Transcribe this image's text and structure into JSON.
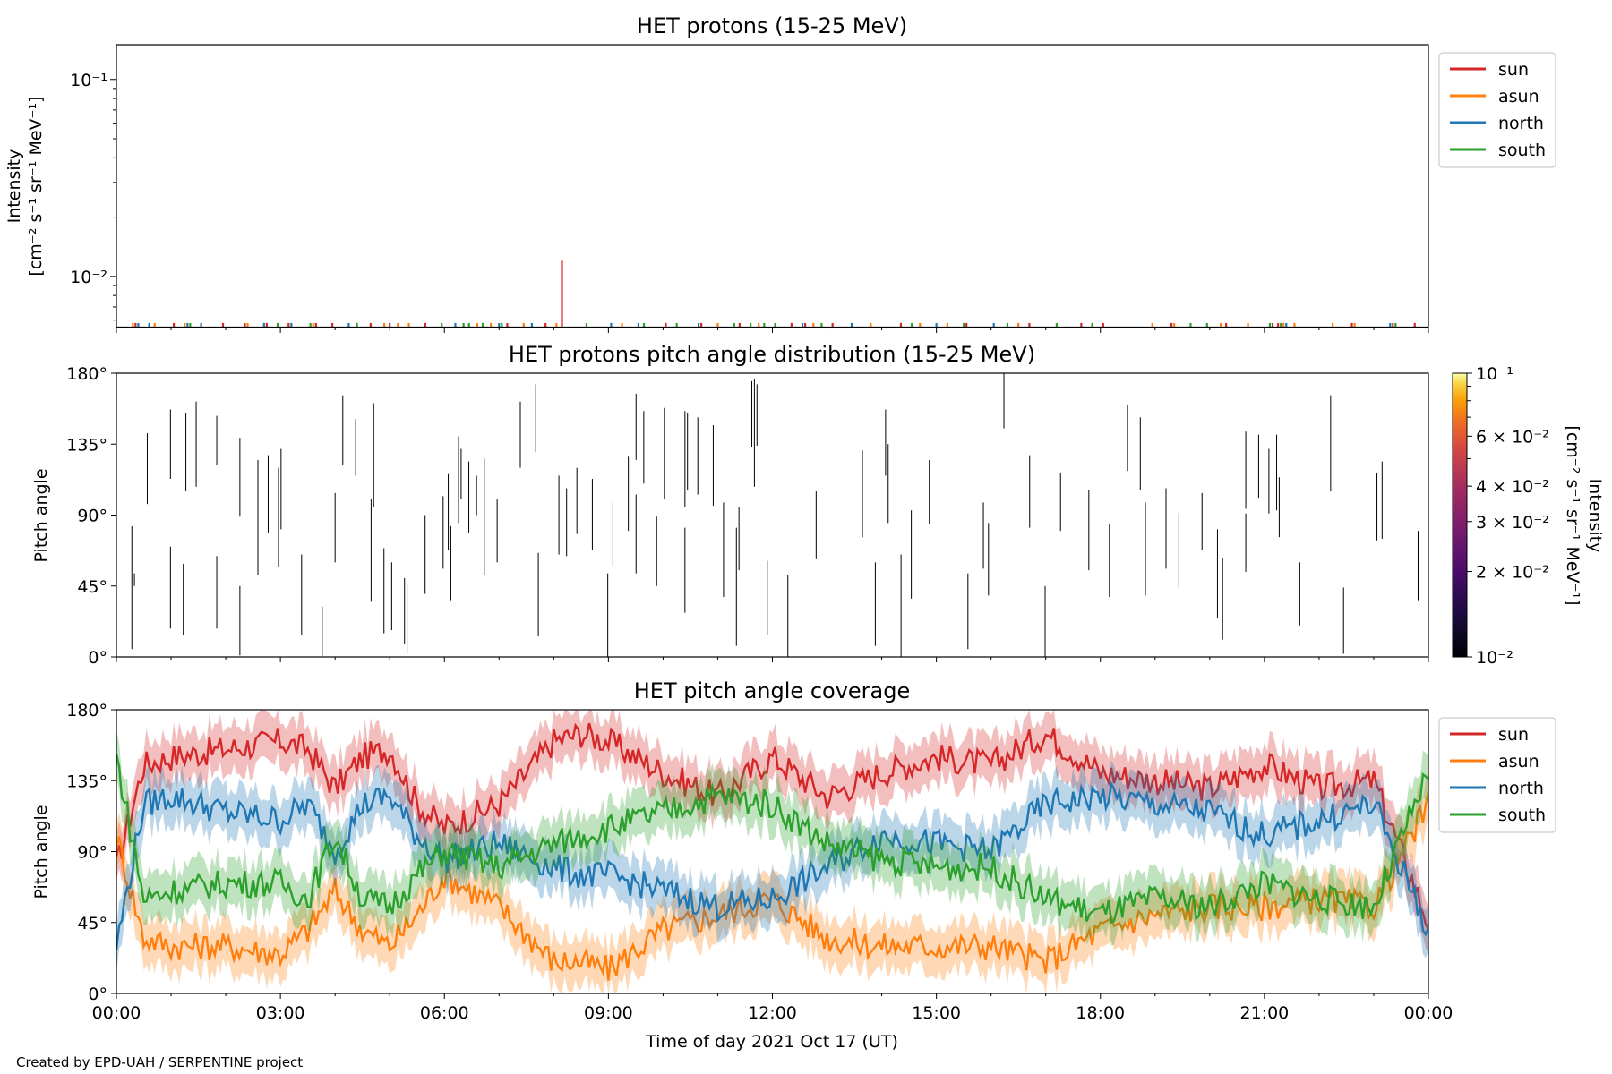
{
  "footer": {
    "credit": "Created by EPD-UAH / SERPENTINE project"
  },
  "chart_data": [
    {
      "type": "line",
      "title": "HET protons (15-25 MeV)",
      "ylabel": "Intensity",
      "ylabel_units": "[cm⁻² s⁻¹ sr⁻¹ MeV⁻¹]",
      "yscale": "log",
      "ylim": [
        0.0055,
        0.15
      ],
      "ytick_labels": [
        "10⁻²",
        "10⁻¹"
      ],
      "xlim_hours": [
        0,
        24
      ],
      "legend": {
        "placement": "outside-top-right",
        "entries": [
          "sun",
          "asun",
          "north",
          "south"
        ]
      },
      "colors": {
        "sun": "#d62728",
        "asun": "#ff7f0e",
        "north": "#1f77b4",
        "south": "#2ca02c"
      },
      "series": [
        {
          "name": "sun",
          "times": [
            0.35,
            1.05,
            1.95,
            2.35,
            2.75,
            3.15,
            3.65,
            3.95,
            4.65,
            5.0,
            5.65,
            7.15,
            7.85,
            8.15,
            10.05,
            10.7,
            11.4,
            12.35,
            12.6,
            13.1,
            14.35,
            15.55,
            16.7,
            17.65,
            18.05,
            19.3,
            20.3,
            21.15,
            21.25,
            22.6,
            23.35,
            23.75
          ],
          "values": [
            0.0058,
            0.0058,
            0.0058,
            0.0058,
            0.0058,
            0.0058,
            0.0058,
            0.0058,
            0.0058,
            0.0058,
            0.0058,
            0.0058,
            0.0058,
            0.012,
            0.0058,
            0.0058,
            0.0058,
            0.0058,
            0.0058,
            0.0058,
            0.0058,
            0.0058,
            0.0058,
            0.0058,
            0.0058,
            0.0058,
            0.0058,
            0.0058,
            0.0058,
            0.0058,
            0.0058,
            0.0058
          ]
        },
        {
          "name": "asun",
          "times": [
            0.3,
            0.7,
            1.25,
            2.4,
            3.6,
            4.9,
            5.15,
            5.35,
            6.6,
            6.85,
            7.45,
            8.05,
            9.25,
            11.0,
            11.75,
            12.75,
            13.8,
            14.7,
            15.2,
            16.5,
            18.95,
            19.35,
            20.2,
            20.7,
            21.35,
            21.55,
            22.25,
            22.65
          ],
          "values": [
            0.0058,
            0.0058,
            0.0058,
            0.0058,
            0.0058,
            0.0058,
            0.0058,
            0.0058,
            0.0058,
            0.0058,
            0.0058,
            0.0058,
            0.0058,
            0.0058,
            0.0058,
            0.0058,
            0.0058,
            0.0058,
            0.0058,
            0.0058,
            0.0058,
            0.0058,
            0.0058,
            0.0058,
            0.0058,
            0.0058,
            0.0058,
            0.0058
          ]
        },
        {
          "name": "north",
          "times": [
            0.4,
            0.6,
            1.3,
            1.55,
            2.7,
            3.2,
            4.25,
            6.2,
            7.0,
            7.6,
            9.05,
            9.55,
            10.65,
            12.55,
            13.45,
            15.0,
            16.05,
            21.4,
            23.3
          ],
          "values": [
            0.0058,
            0.0058,
            0.0058,
            0.0058,
            0.0058,
            0.0058,
            0.0058,
            0.0058,
            0.0058,
            0.0058,
            0.0058,
            0.0058,
            0.0058,
            0.0058,
            0.0058,
            0.0058,
            0.0058,
            0.0058,
            0.0058
          ]
        },
        {
          "name": "south",
          "times": [
            1.35,
            2.95,
            3.55,
            4.4,
            5.95,
            6.35,
            6.45,
            6.7,
            7.05,
            8.6,
            9.65,
            10.25,
            11.3,
            11.6,
            11.85,
            12.05,
            12.9,
            14.55,
            15.5,
            16.3,
            17.2,
            17.85,
            19.65,
            19.95,
            21.1,
            21.3,
            23.4
          ],
          "values": [
            0.0058,
            0.0058,
            0.0058,
            0.0058,
            0.0058,
            0.0058,
            0.0058,
            0.0058,
            0.0058,
            0.0058,
            0.0058,
            0.0058,
            0.0058,
            0.0058,
            0.0058,
            0.0058,
            0.0058,
            0.0058,
            0.0058,
            0.0058,
            0.0058,
            0.0058,
            0.0058,
            0.0058,
            0.0058,
            0.0058,
            0.0058
          ]
        }
      ]
    },
    {
      "type": "heatmap",
      "title": "HET protons pitch angle distribution (15-25 MeV)",
      "ylabel": "Pitch angle",
      "ylim": [
        0,
        180
      ],
      "ytick_labels": [
        "0°",
        "45°",
        "90°",
        "135°",
        "180°"
      ],
      "xlim_hours": [
        0,
        24
      ],
      "colorbar": {
        "label": "Intensity",
        "units": "[cm⁻² s⁻¹ sr⁻¹ MeV⁻¹]",
        "scale": "log",
        "range": [
          0.01,
          0.1
        ],
        "tick_labels": [
          "10⁻²",
          "2 × 10⁻²",
          "3 × 10⁻²",
          "4 × 10⁻²",
          "6 × 10⁻²",
          "10⁻¹"
        ],
        "colormap": "inferno"
      },
      "segments": [
        [
          0.3,
          5,
          83
        ],
        [
          0.35,
          45,
          53
        ],
        [
          0.6,
          97,
          142
        ],
        [
          1.05,
          18,
          70
        ],
        [
          1.05,
          113,
          157
        ],
        [
          1.3,
          14,
          59
        ],
        [
          1.35,
          105,
          155
        ],
        [
          1.55,
          108,
          162
        ],
        [
          1.95,
          18,
          64
        ],
        [
          1.95,
          122,
          153
        ],
        [
          2.4,
          1,
          45
        ],
        [
          2.4,
          89,
          139
        ],
        [
          2.75,
          52,
          95
        ],
        [
          2.75,
          62,
          125
        ],
        [
          2.95,
          79,
          128
        ],
        [
          3.15,
          57,
          120
        ],
        [
          3.2,
          81,
          132
        ],
        [
          3.6,
          14,
          65
        ],
        [
          4.0,
          0,
          32
        ],
        [
          4.25,
          60,
          104
        ],
        [
          4.4,
          122,
          166
        ],
        [
          4.65,
          115,
          151
        ],
        [
          4.95,
          35,
          100
        ],
        [
          5.0,
          95,
          161
        ],
        [
          5.2,
          15,
          69
        ],
        [
          5.35,
          17,
          60
        ],
        [
          5.6,
          8,
          50
        ],
        [
          5.65,
          2,
          46
        ],
        [
          6.0,
          40,
          90
        ],
        [
          6.35,
          56,
          102
        ],
        [
          6.45,
          68,
          116
        ],
        [
          6.5,
          36,
          83
        ],
        [
          6.65,
          85,
          140
        ],
        [
          6.7,
          100,
          132
        ],
        [
          6.85,
          79,
          124
        ],
        [
          7.0,
          90,
          115
        ],
        [
          7.15,
          52,
          126
        ],
        [
          7.4,
          60,
          100
        ],
        [
          7.85,
          120,
          162
        ],
        [
          8.15,
          130,
          173
        ],
        [
          8.2,
          13,
          66
        ],
        [
          8.6,
          65,
          115
        ],
        [
          8.75,
          64,
          107
        ],
        [
          8.95,
          78,
          120
        ],
        [
          9.25,
          68,
          113
        ],
        [
          9.55,
          0,
          53
        ],
        [
          9.65,
          58,
          98
        ],
        [
          9.95,
          80,
          127
        ],
        [
          10.1,
          53,
          103
        ],
        [
          10.1,
          125,
          167
        ],
        [
          10.25,
          110,
          156
        ],
        [
          10.5,
          45,
          89
        ],
        [
          10.65,
          100,
          158
        ],
        [
          11.05,
          28,
          82
        ],
        [
          11.05,
          95,
          156
        ],
        [
          11.1,
          106,
          155
        ],
        [
          11.3,
          103,
          152
        ],
        [
          11.6,
          96,
          147
        ],
        [
          11.8,
          38,
          98
        ],
        [
          12.05,
          7,
          82
        ],
        [
          12.1,
          55,
          95
        ],
        [
          12.35,
          133,
          175
        ],
        [
          12.4,
          108,
          176
        ],
        [
          12.45,
          134,
          173
        ],
        [
          12.65,
          14,
          61
        ],
        [
          13.05,
          0,
          52
        ],
        [
          13.6,
          62,
          105
        ],
        [
          14.5,
          76,
          131
        ],
        [
          14.75,
          7,
          60
        ],
        [
          14.95,
          115,
          157
        ],
        [
          15.0,
          85,
          135
        ],
        [
          15.25,
          0,
          65
        ],
        [
          15.45,
          37,
          93
        ],
        [
          15.8,
          84,
          125
        ],
        [
          16.55,
          5,
          53
        ],
        [
          16.85,
          56,
          98
        ],
        [
          16.95,
          39,
          85
        ],
        [
          17.25,
          145,
          180
        ],
        [
          17.75,
          82,
          128
        ],
        [
          18.05,
          0,
          45
        ],
        [
          18.35,
          80,
          117
        ],
        [
          18.9,
          55,
          106
        ],
        [
          19.3,
          38,
          84
        ],
        [
          19.65,
          118,
          160
        ],
        [
          19.9,
          106,
          152
        ],
        [
          20.0,
          39,
          98
        ],
        [
          20.4,
          56,
          107
        ],
        [
          20.65,
          44,
          91
        ],
        [
          21.1,
          68,
          104
        ],
        [
          21.4,
          25,
          81
        ],
        [
          21.5,
          11,
          63
        ],
        [
          21.95,
          54,
          91
        ],
        [
          21.95,
          94,
          143
        ],
        [
          22.2,
          101,
          141
        ],
        [
          22.4,
          91,
          132
        ],
        [
          22.55,
          93,
          141
        ],
        [
          22.6,
          76,
          114
        ],
        [
          23.0,
          20,
          60
        ],
        [
          23.6,
          105,
          166
        ],
        [
          23.85,
          2,
          44
        ],
        [
          24.5,
          74,
          117
        ],
        [
          24.6,
          75,
          124
        ],
        [
          25.3,
          36,
          80
        ]
      ]
    },
    {
      "type": "area",
      "title": "HET pitch angle coverage",
      "ylabel": "Pitch angle",
      "xlabel": "Time of day 2021 Oct 17 (UT)",
      "ylim": [
        0,
        180
      ],
      "ytick_labels": [
        "0°",
        "45°",
        "90°",
        "135°",
        "180°"
      ],
      "xtick_labels": [
        "00:00",
        "03:00",
        "06:00",
        "09:00",
        "12:00",
        "15:00",
        "18:00",
        "21:00",
        "00:00"
      ],
      "xlim_hours": [
        0,
        24
      ],
      "legend": {
        "placement": "outside-top-right",
        "entries": [
          "sun",
          "asun",
          "north",
          "south"
        ]
      },
      "band_halfwidth": 15,
      "series": [
        {
          "name": "sun",
          "hours": [
            0,
            0.5,
            1,
            2,
            3,
            3.5,
            4,
            4.5,
            5,
            5.5,
            6,
            7,
            8,
            8.5,
            9,
            10,
            11,
            12,
            13,
            14,
            15,
            16,
            17,
            18,
            19,
            20,
            21,
            22,
            23,
            24
          ],
          "values": [
            80,
            145,
            150,
            155,
            160,
            155,
            130,
            150,
            155,
            120,
            105,
            120,
            160,
            165,
            160,
            140,
            125,
            150,
            125,
            140,
            150,
            145,
            165,
            140,
            135,
            130,
            145,
            130,
            135,
            45
          ]
        },
        {
          "name": "asun",
          "hours": [
            0,
            0.5,
            1,
            2,
            3,
            3.5,
            4,
            4.5,
            5,
            5.5,
            6,
            7,
            8,
            8.5,
            9,
            10,
            11,
            12,
            13,
            14,
            15,
            16,
            17,
            18,
            19,
            20,
            21,
            22,
            23,
            24
          ],
          "values": [
            100,
            35,
            30,
            30,
            25,
            40,
            65,
            40,
            30,
            50,
            75,
            55,
            20,
            20,
            15,
            40,
            50,
            60,
            35,
            30,
            30,
            30,
            20,
            40,
            50,
            55,
            55,
            60,
            55,
            120
          ]
        },
        {
          "name": "north",
          "hours": [
            0,
            0.5,
            1,
            2,
            3,
            3.5,
            4,
            4.5,
            5,
            5.5,
            6,
            7,
            8,
            8.5,
            9,
            10,
            11,
            12,
            13,
            14,
            15,
            16,
            17,
            18,
            19,
            20,
            21,
            22,
            23,
            24
          ],
          "values": [
            30,
            120,
            125,
            115,
            110,
            120,
            90,
            120,
            125,
            100,
            85,
            95,
            80,
            75,
            75,
            65,
            55,
            60,
            80,
            100,
            95,
            90,
            120,
            125,
            120,
            115,
            100,
            110,
            120,
            40
          ]
        },
        {
          "name": "south",
          "hours": [
            0,
            0.5,
            1,
            2,
            3,
            3.5,
            4,
            4.5,
            5,
            5.5,
            6,
            7,
            8,
            8.5,
            9,
            10,
            11,
            12,
            13,
            14,
            15,
            16,
            17,
            18,
            19,
            20,
            21,
            22,
            23,
            24
          ],
          "values": [
            150,
            60,
            65,
            70,
            70,
            60,
            100,
            60,
            55,
            75,
            90,
            80,
            95,
            100,
            105,
            115,
            125,
            120,
            95,
            85,
            80,
            80,
            60,
            50,
            60,
            55,
            70,
            60,
            55,
            140
          ]
        }
      ]
    }
  ]
}
